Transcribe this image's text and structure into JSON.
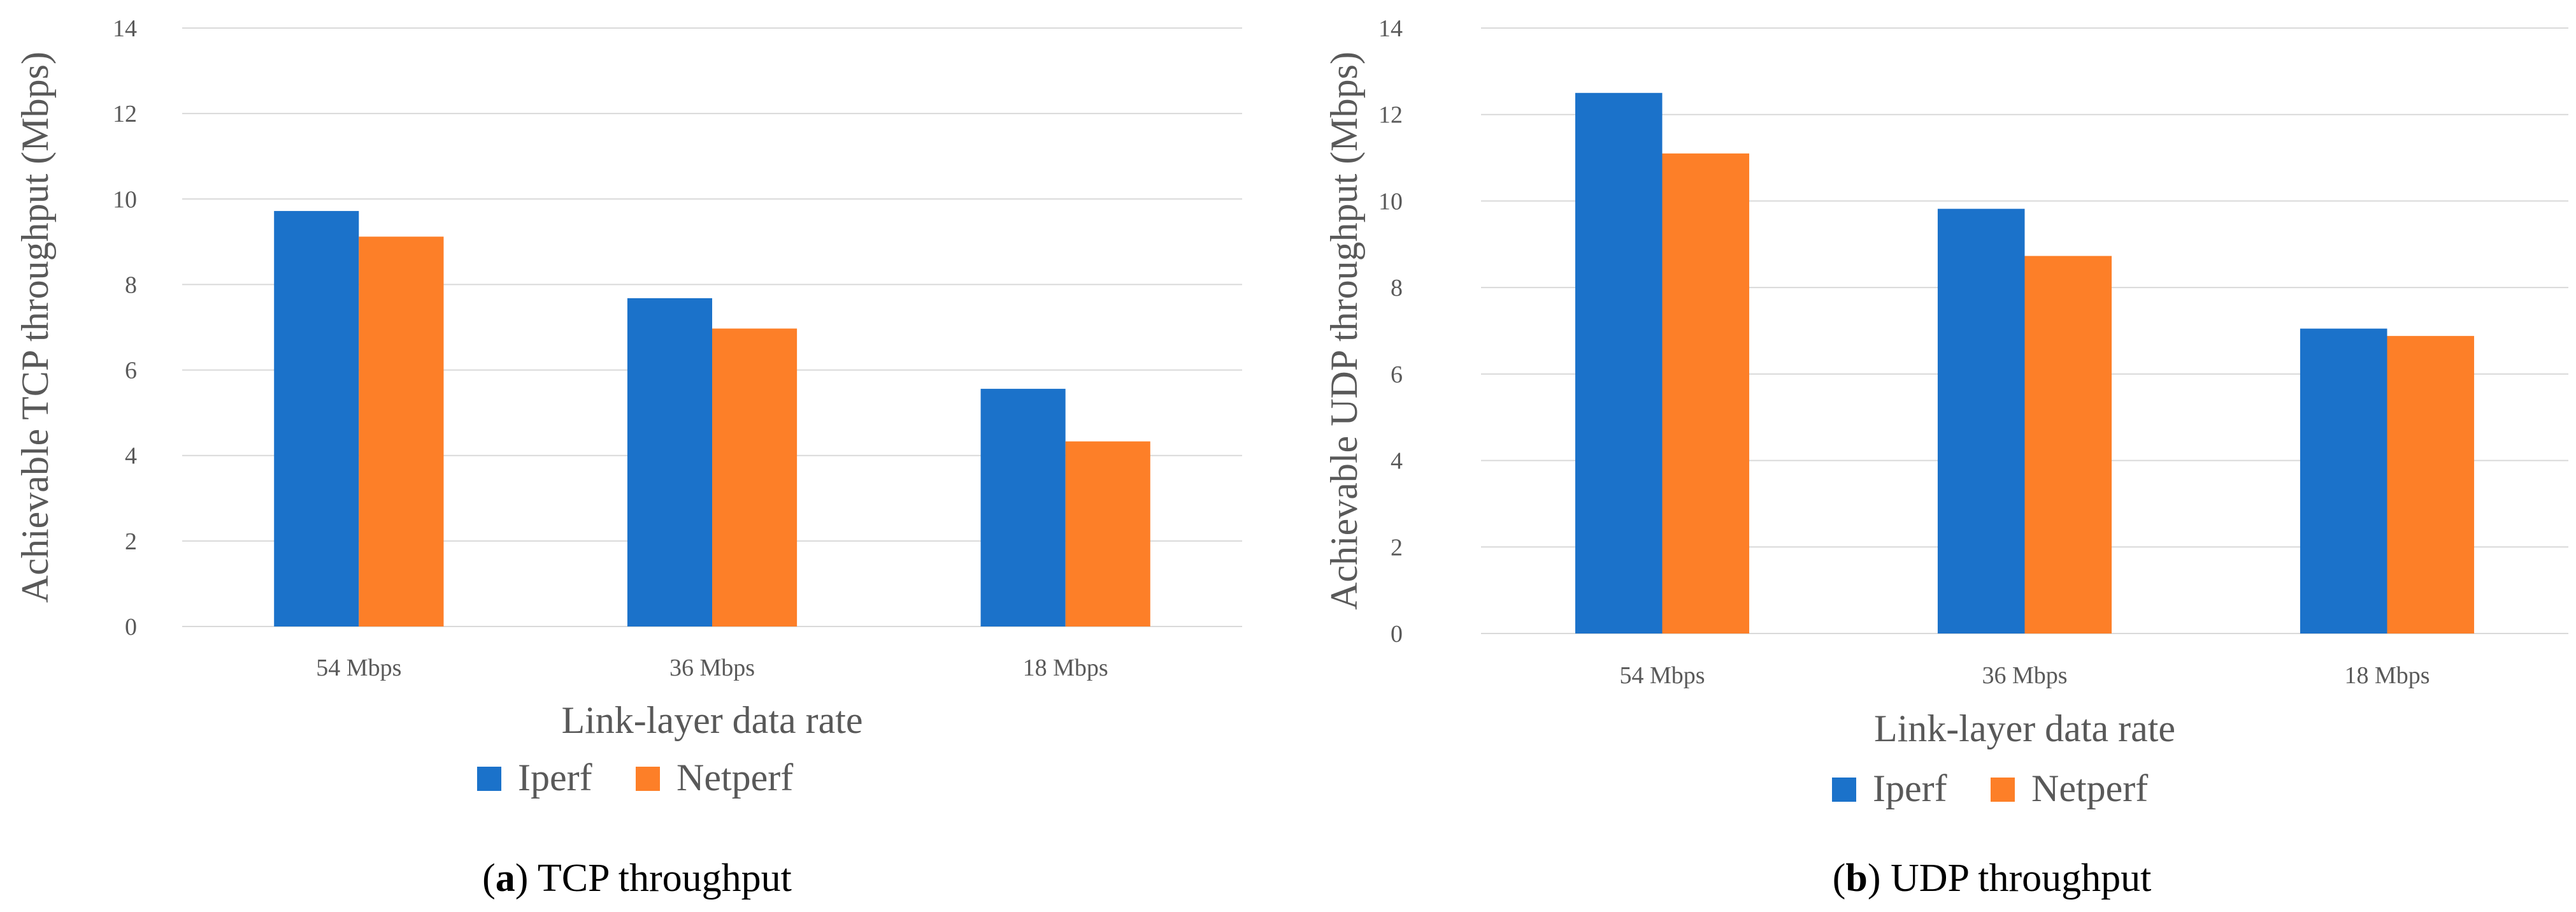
{
  "colors": {
    "iperf": "#1b72ca",
    "netperf": "#fd7f28",
    "grid": "#d9d9d9",
    "text": "#595959"
  },
  "chart_data": [
    {
      "type": "bar",
      "title": "",
      "xlabel": "Link-layer data rate",
      "ylabel": "Achievable TCP throughput (Mbps)",
      "categories": [
        "54 Mbps",
        "36 Mbps",
        "18 Mbps"
      ],
      "ylim": [
        0,
        14
      ],
      "yticks": [
        "0",
        "2",
        "4",
        "6",
        "8",
        "10",
        "12",
        "14"
      ],
      "grid": true,
      "legend_position": "bottom",
      "series": [
        {
          "name": "Iperf",
          "values": [
            9.72,
            7.68,
            5.56
          ]
        },
        {
          "name": "Netperf",
          "values": [
            9.12,
            6.97,
            4.33
          ]
        }
      ],
      "caption": {
        "letter": "a",
        "text": "TCP throughput"
      }
    },
    {
      "type": "bar",
      "title": "",
      "xlabel": "Link-layer data rate",
      "ylabel": "Achievable UDP throughput (Mbps)",
      "categories": [
        "54 Mbps",
        "36 Mbps",
        "18 Mbps"
      ],
      "ylim": [
        0,
        14
      ],
      "yticks": [
        "0",
        "2",
        "4",
        "6",
        "8",
        "10",
        "12",
        "14"
      ],
      "grid": true,
      "legend_position": "bottom",
      "series": [
        {
          "name": "Iperf",
          "values": [
            12.5,
            9.82,
            7.05
          ]
        },
        {
          "name": "Netperf",
          "values": [
            11.1,
            8.73,
            6.88
          ]
        }
      ],
      "caption": {
        "letter": "b",
        "text": "UDP throughput"
      }
    }
  ]
}
